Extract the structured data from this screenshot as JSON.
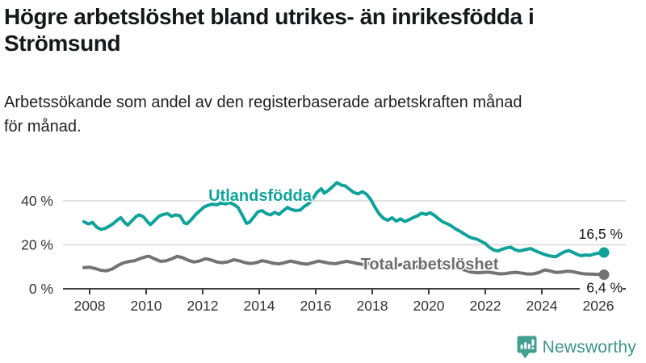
{
  "header": {
    "title_lines": [
      "Högre arbetslöshet bland utrikes- än inrikesfödda i",
      "Strömsund"
    ],
    "subtitle_lines": [
      "Arbetssökande som andel av den registerbaserade arbetskraften månad",
      "för månad."
    ]
  },
  "chart_data": {
    "type": "line",
    "title": "Högre arbetslöshet bland utrikes- än inrikesfödda i Strömsund",
    "subtitle": "Arbetssökande som andel av den registerbaserade arbetskraften månad för månad.",
    "xlabel": "",
    "ylabel": "",
    "unit": "%",
    "grid": "horizontal",
    "legend_position": "inline-labels",
    "xlim": [
      2007.0,
      2027.0
    ],
    "ylim": [
      0,
      50
    ],
    "x_ticks": [
      {
        "label": "2008",
        "year": 2008
      },
      {
        "label": "2010",
        "year": 2010
      },
      {
        "label": "2012",
        "year": 2012
      },
      {
        "label": "2014",
        "year": 2014
      },
      {
        "label": "2016",
        "year": 2016
      },
      {
        "label": "2018",
        "year": 2018
      },
      {
        "label": "2020",
        "year": 2020
      },
      {
        "label": "2022",
        "year": 2022
      },
      {
        "label": "2024",
        "year": 2024
      },
      {
        "label": "2026",
        "year": 2026
      }
    ],
    "y_ticks": [
      {
        "label": "0 %",
        "value": 0
      },
      {
        "label": "20 %",
        "value": 20
      },
      {
        "label": "40 %",
        "value": 40
      }
    ],
    "series": [
      {
        "name": "Utlandsfödda",
        "color": "#10A29A",
        "end_label": "16,5 %",
        "end_value": 16.5,
        "points": [
          [
            2007.8,
            30.5
          ],
          [
            2007.95,
            29.5
          ],
          [
            2008.1,
            30.2
          ],
          [
            2008.25,
            28.0
          ],
          [
            2008.4,
            27.0
          ],
          [
            2008.55,
            27.5
          ],
          [
            2008.7,
            28.5
          ],
          [
            2008.85,
            29.8
          ],
          [
            2009.0,
            31.5
          ],
          [
            2009.1,
            32.4
          ],
          [
            2009.25,
            30.0
          ],
          [
            2009.35,
            29.0
          ],
          [
            2009.5,
            31.0
          ],
          [
            2009.65,
            33.0
          ],
          [
            2009.75,
            33.6
          ],
          [
            2009.9,
            32.8
          ],
          [
            2010.05,
            30.5
          ],
          [
            2010.15,
            29.2
          ],
          [
            2010.3,
            31.0
          ],
          [
            2010.45,
            33.0
          ],
          [
            2010.6,
            33.8
          ],
          [
            2010.75,
            34.2
          ],
          [
            2010.9,
            33.0
          ],
          [
            2011.05,
            33.6
          ],
          [
            2011.2,
            33.2
          ],
          [
            2011.35,
            30.0
          ],
          [
            2011.45,
            29.6
          ],
          [
            2011.6,
            31.5
          ],
          [
            2011.75,
            33.8
          ],
          [
            2011.9,
            35.5
          ],
          [
            2012.05,
            37.2
          ],
          [
            2012.2,
            38.0
          ],
          [
            2012.35,
            38.5
          ],
          [
            2012.5,
            38.2
          ],
          [
            2012.65,
            39.0
          ],
          [
            2012.8,
            38.6
          ],
          [
            2012.95,
            39.2
          ],
          [
            2013.1,
            38.4
          ],
          [
            2013.25,
            37.0
          ],
          [
            2013.4,
            33.5
          ],
          [
            2013.55,
            29.8
          ],
          [
            2013.65,
            30.2
          ],
          [
            2013.8,
            32.5
          ],
          [
            2013.95,
            35.0
          ],
          [
            2014.1,
            35.6
          ],
          [
            2014.25,
            34.2
          ],
          [
            2014.4,
            33.6
          ],
          [
            2014.55,
            34.8
          ],
          [
            2014.7,
            33.8
          ],
          [
            2014.85,
            35.5
          ],
          [
            2015.0,
            37.0
          ],
          [
            2015.15,
            36.0
          ],
          [
            2015.3,
            35.6
          ],
          [
            2015.45,
            35.8
          ],
          [
            2015.6,
            37.5
          ],
          [
            2015.75,
            38.8
          ],
          [
            2015.9,
            41.0
          ],
          [
            2016.05,
            44.0
          ],
          [
            2016.2,
            45.5
          ],
          [
            2016.3,
            43.5
          ],
          [
            2016.45,
            44.8
          ],
          [
            2016.6,
            46.5
          ],
          [
            2016.75,
            48.3
          ],
          [
            2016.9,
            47.2
          ],
          [
            2017.05,
            46.8
          ],
          [
            2017.2,
            45.2
          ],
          [
            2017.35,
            43.8
          ],
          [
            2017.5,
            43.2
          ],
          [
            2017.65,
            44.2
          ],
          [
            2017.8,
            43.0
          ],
          [
            2017.95,
            40.5
          ],
          [
            2018.1,
            37.0
          ],
          [
            2018.25,
            34.0
          ],
          [
            2018.4,
            32.0
          ],
          [
            2018.55,
            31.2
          ],
          [
            2018.7,
            32.3
          ],
          [
            2018.85,
            30.8
          ],
          [
            2019.0,
            31.8
          ],
          [
            2019.15,
            30.6
          ],
          [
            2019.3,
            31.4
          ],
          [
            2019.45,
            32.4
          ],
          [
            2019.6,
            33.2
          ],
          [
            2019.75,
            34.4
          ],
          [
            2019.9,
            33.8
          ],
          [
            2020.05,
            34.6
          ],
          [
            2020.2,
            33.4
          ],
          [
            2020.35,
            31.8
          ],
          [
            2020.5,
            30.4
          ],
          [
            2020.65,
            29.6
          ],
          [
            2020.8,
            28.6
          ],
          [
            2020.95,
            27.2
          ],
          [
            2021.1,
            26.2
          ],
          [
            2021.25,
            25.0
          ],
          [
            2021.4,
            23.8
          ],
          [
            2021.55,
            23.0
          ],
          [
            2021.7,
            22.6
          ],
          [
            2021.85,
            21.6
          ],
          [
            2022.0,
            20.6
          ],
          [
            2022.15,
            18.8
          ],
          [
            2022.3,
            17.6
          ],
          [
            2022.45,
            17.2
          ],
          [
            2022.6,
            18.0
          ],
          [
            2022.75,
            18.6
          ],
          [
            2022.9,
            18.9
          ],
          [
            2023.05,
            17.8
          ],
          [
            2023.2,
            17.2
          ],
          [
            2023.35,
            17.6
          ],
          [
            2023.6,
            18.3
          ],
          [
            2023.75,
            17.4
          ],
          [
            2023.9,
            16.6
          ],
          [
            2024.05,
            15.8
          ],
          [
            2024.2,
            15.2
          ],
          [
            2024.35,
            14.8
          ],
          [
            2024.5,
            14.6
          ],
          [
            2024.65,
            15.8
          ],
          [
            2024.8,
            16.8
          ],
          [
            2024.95,
            17.4
          ],
          [
            2025.1,
            16.6
          ],
          [
            2025.25,
            15.6
          ],
          [
            2025.4,
            15.0
          ],
          [
            2025.55,
            15.4
          ],
          [
            2025.7,
            15.2
          ],
          [
            2025.85,
            15.8
          ],
          [
            2026.0,
            16.2
          ],
          [
            2026.2,
            16.5
          ]
        ]
      },
      {
        "name": "Total arbetslöshet",
        "color": "#737373",
        "end_label": "6,4 %",
        "end_value": 6.4,
        "points": [
          [
            2007.8,
            9.6
          ],
          [
            2008.0,
            9.8
          ],
          [
            2008.2,
            9.2
          ],
          [
            2008.4,
            8.4
          ],
          [
            2008.6,
            8.2
          ],
          [
            2008.8,
            9.0
          ],
          [
            2009.0,
            10.6
          ],
          [
            2009.2,
            11.8
          ],
          [
            2009.4,
            12.4
          ],
          [
            2009.6,
            12.8
          ],
          [
            2009.8,
            13.8
          ],
          [
            2010.0,
            14.6
          ],
          [
            2010.1,
            14.8
          ],
          [
            2010.3,
            13.6
          ],
          [
            2010.5,
            12.5
          ],
          [
            2010.7,
            12.7
          ],
          [
            2010.9,
            13.6
          ],
          [
            2011.1,
            14.8
          ],
          [
            2011.3,
            14.1
          ],
          [
            2011.5,
            12.9
          ],
          [
            2011.7,
            12.2
          ],
          [
            2011.9,
            12.7
          ],
          [
            2012.1,
            13.7
          ],
          [
            2012.3,
            13.1
          ],
          [
            2012.5,
            12.2
          ],
          [
            2012.7,
            11.9
          ],
          [
            2012.9,
            12.3
          ],
          [
            2013.1,
            13.2
          ],
          [
            2013.3,
            12.7
          ],
          [
            2013.5,
            11.9
          ],
          [
            2013.7,
            11.5
          ],
          [
            2013.9,
            11.9
          ],
          [
            2014.1,
            12.8
          ],
          [
            2014.3,
            12.3
          ],
          [
            2014.5,
            11.6
          ],
          [
            2014.7,
            11.3
          ],
          [
            2014.9,
            11.9
          ],
          [
            2015.1,
            12.6
          ],
          [
            2015.3,
            12.1
          ],
          [
            2015.5,
            11.5
          ],
          [
            2015.7,
            11.2
          ],
          [
            2015.9,
            11.9
          ],
          [
            2016.1,
            12.6
          ],
          [
            2016.3,
            12.1
          ],
          [
            2016.5,
            11.6
          ],
          [
            2016.7,
            11.4
          ],
          [
            2016.9,
            12.0
          ],
          [
            2017.1,
            12.5
          ],
          [
            2017.3,
            12.0
          ],
          [
            2017.5,
            11.4
          ],
          [
            2017.7,
            11.0
          ],
          [
            2017.9,
            11.4
          ],
          [
            2018.1,
            12.0
          ],
          [
            2018.3,
            11.5
          ],
          [
            2018.5,
            10.7
          ],
          [
            2018.7,
            10.3
          ],
          [
            2018.9,
            10.7
          ],
          [
            2019.1,
            11.2
          ],
          [
            2019.3,
            10.7
          ],
          [
            2019.5,
            10.1
          ],
          [
            2019.7,
            9.9
          ],
          [
            2019.9,
            10.5
          ],
          [
            2020.1,
            11.3
          ],
          [
            2020.3,
            11.7
          ],
          [
            2020.5,
            11.0
          ],
          [
            2020.7,
            10.4
          ],
          [
            2020.9,
            9.9
          ],
          [
            2021.1,
            9.3
          ],
          [
            2021.3,
            8.4
          ],
          [
            2021.5,
            7.6
          ],
          [
            2021.7,
            7.3
          ],
          [
            2021.9,
            7.4
          ],
          [
            2022.1,
            7.6
          ],
          [
            2022.3,
            7.2
          ],
          [
            2022.5,
            6.8
          ],
          [
            2022.7,
            6.9
          ],
          [
            2022.9,
            7.3
          ],
          [
            2023.1,
            7.5
          ],
          [
            2023.3,
            7.1
          ],
          [
            2023.5,
            6.7
          ],
          [
            2023.7,
            6.8
          ],
          [
            2023.9,
            7.4
          ],
          [
            2024.1,
            8.6
          ],
          [
            2024.3,
            8.1
          ],
          [
            2024.5,
            7.4
          ],
          [
            2024.7,
            7.6
          ],
          [
            2024.9,
            8.0
          ],
          [
            2025.1,
            7.8
          ],
          [
            2025.3,
            7.2
          ],
          [
            2025.5,
            6.8
          ],
          [
            2025.7,
            6.7
          ],
          [
            2025.9,
            6.6
          ],
          [
            2026.2,
            6.4
          ]
        ]
      }
    ]
  },
  "footer": {
    "brand": "Newsworthy",
    "brand_color": "#3E9389",
    "icon": "newsworthy-bar-chart-pin-icon",
    "icon_color": "#43A091"
  }
}
